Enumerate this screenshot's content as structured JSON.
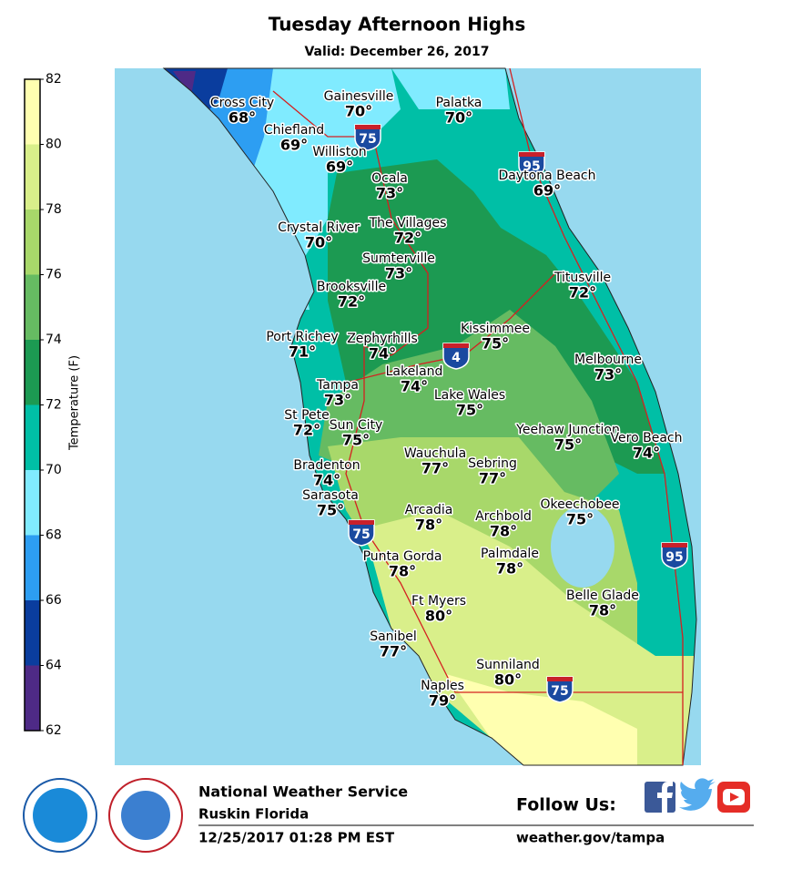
{
  "title": "Tuesday Afternoon Highs",
  "subtitle": "Valid: December 26, 2017",
  "legend": {
    "title": "Temperature (F)",
    "ticks": [
      62,
      64,
      66,
      68,
      70,
      72,
      74,
      76,
      78,
      80,
      82
    ],
    "colors": [
      "#4e2a86",
      "#0a3d9e",
      "#2d9ef2",
      "#80ebff",
      "#00bfa6",
      "#1c9a52",
      "#66bb62",
      "#a8d86a",
      "#d9ef8a",
      "#ffffb0"
    ]
  },
  "cities": [
    {
      "name": "Cross City",
      "temp": "68°"
    },
    {
      "name": "Gainesville",
      "temp": "70°"
    },
    {
      "name": "Palatka",
      "temp": "70°"
    },
    {
      "name": "Chiefland",
      "temp": "69°"
    },
    {
      "name": "Williston",
      "temp": "69°"
    },
    {
      "name": "Ocala",
      "temp": "73°"
    },
    {
      "name": "Daytona Beach",
      "temp": "69°"
    },
    {
      "name": "Crystal River",
      "temp": "70°"
    },
    {
      "name": "The Villages",
      "temp": "72°"
    },
    {
      "name": "Sumterville",
      "temp": "73°"
    },
    {
      "name": "Titusville",
      "temp": "72°"
    },
    {
      "name": "Brooksville",
      "temp": "72°"
    },
    {
      "name": "Port Richey",
      "temp": "71°"
    },
    {
      "name": "Zephyrhills",
      "temp": "74°"
    },
    {
      "name": "Kissimmee",
      "temp": "75°"
    },
    {
      "name": "Melbourne",
      "temp": "73°"
    },
    {
      "name": "Lakeland",
      "temp": "74°"
    },
    {
      "name": "Tampa",
      "temp": "73°"
    },
    {
      "name": "Lake Wales",
      "temp": "75°"
    },
    {
      "name": "St Pete",
      "temp": "72°"
    },
    {
      "name": "Sun City",
      "temp": "75°"
    },
    {
      "name": "Yeehaw Junction",
      "temp": "75°"
    },
    {
      "name": "Vero Beach",
      "temp": "74°"
    },
    {
      "name": "Wauchula",
      "temp": "77°"
    },
    {
      "name": "Sebring",
      "temp": "77°"
    },
    {
      "name": "Bradenton",
      "temp": "74°"
    },
    {
      "name": "Sarasota",
      "temp": "75°"
    },
    {
      "name": "Okeechobee",
      "temp": "75°"
    },
    {
      "name": "Arcadia",
      "temp": "78°"
    },
    {
      "name": "Archbold",
      "temp": "78°"
    },
    {
      "name": "Punta Gorda",
      "temp": "78°"
    },
    {
      "name": "Palmdale",
      "temp": "78°"
    },
    {
      "name": "Belle Glade",
      "temp": "78°"
    },
    {
      "name": "Ft Myers",
      "temp": "80°"
    },
    {
      "name": "Sanibel",
      "temp": "77°"
    },
    {
      "name": "Sunniland",
      "temp": "80°"
    },
    {
      "name": "Naples",
      "temp": "79°"
    }
  ],
  "shields": [
    "75",
    "95",
    "4",
    "75",
    "95",
    "75"
  ],
  "footer": {
    "office": "National Weather Service",
    "location": "Ruskin Florida",
    "issued": "12/25/2017 01:28 PM EST",
    "follow": "Follow Us:",
    "url": "weather.gov/tampa"
  }
}
